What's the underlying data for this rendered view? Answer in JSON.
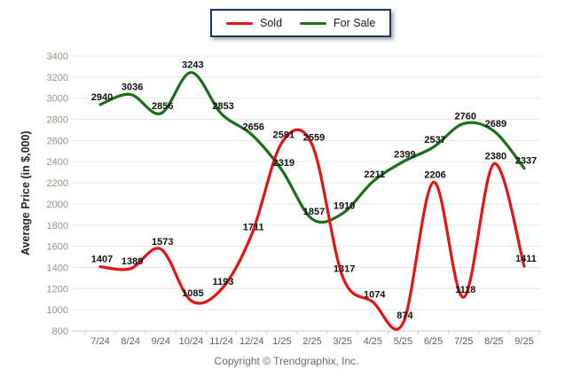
{
  "legend": {
    "items": [
      {
        "label": "Sold",
        "color": "#e41414"
      },
      {
        "label": "For Sale",
        "color": "#1a701a"
      }
    ]
  },
  "footer": "Copyright © Trendgraphix, Inc.",
  "palette": {
    "sold_red": "#e41414",
    "for_sale_green": "#1a701a",
    "legend_border": "#17375e"
  },
  "chart_data": {
    "type": "line",
    "title": "",
    "xlabel": "",
    "ylabel": "Average Price (in $,000)",
    "categories": [
      "7/24",
      "8/24",
      "9/24",
      "10/24",
      "11/24",
      "12/24",
      "1/25",
      "2/25",
      "3/25",
      "4/25",
      "5/25",
      "6/25",
      "7/25",
      "8/25",
      "9/25"
    ],
    "series": [
      {
        "name": "Sold",
        "color": "#e41414",
        "values": [
          1407,
          1389,
          1573,
          1085,
          1193,
          1711,
          2581,
          2559,
          1317,
          1074,
          874,
          2206,
          1118,
          2380,
          1411
        ]
      },
      {
        "name": "For Sale",
        "color": "#1a701a",
        "values": [
          2940,
          3036,
          2856,
          3243,
          2853,
          2656,
          2319,
          1857,
          1910,
          2211,
          2399,
          2537,
          2760,
          2689,
          2337
        ]
      }
    ],
    "ylim": [
      800,
      3400
    ],
    "ytick_step": 200,
    "grid": true,
    "legend_position": "top-center",
    "data_labels": true
  }
}
